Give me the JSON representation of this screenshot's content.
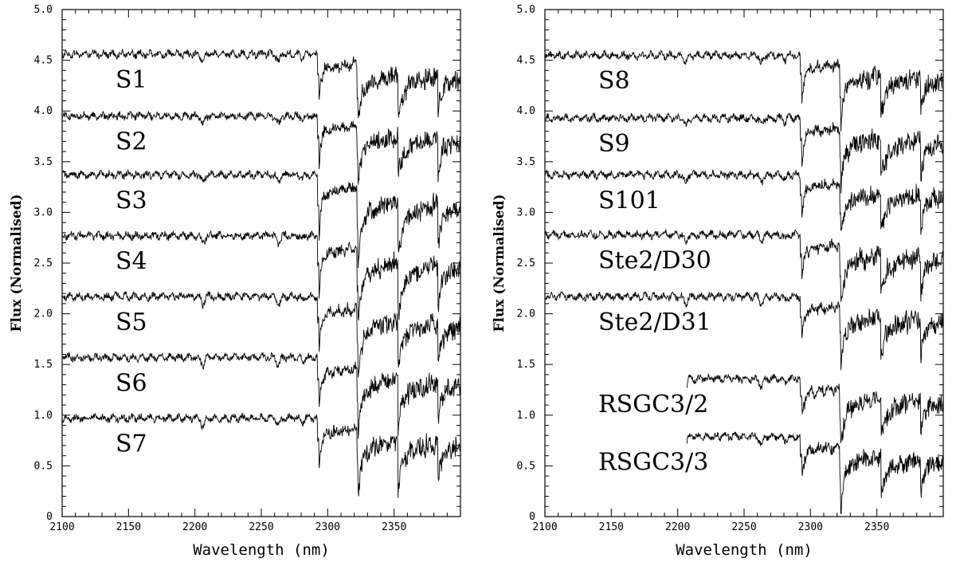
{
  "chart_data": [
    {
      "type": "line",
      "xlabel": "Wavelength (nm)",
      "ylabel": "Flux (Normalised)",
      "xlim": [
        2100,
        2400
      ],
      "ylim": [
        0,
        5
      ],
      "x_ticks": [
        "2100",
        "2150",
        "2200",
        "2250",
        "2300",
        "2350"
      ],
      "y_ticks": [
        "0",
        "0.5",
        "1.0",
        "1.5",
        "2.0",
        "2.5",
        "3.0",
        "3.5",
        "4.0",
        "4.5",
        "5.0"
      ],
      "x_tick_values": [
        2100,
        2150,
        2200,
        2250,
        2300,
        2350
      ],
      "y_tick_values": [
        0,
        0.5,
        1.0,
        1.5,
        2.0,
        2.5,
        3.0,
        3.5,
        4.0,
        4.5,
        5.0
      ],
      "series": [
        {
          "name": "S1",
          "baseline": 4.56,
          "wave_start": 2100,
          "co_depth": 1.0
        },
        {
          "name": "S2",
          "baseline": 3.95,
          "wave_start": 2100,
          "co_depth": 1.0
        },
        {
          "name": "S3",
          "baseline": 3.37,
          "wave_start": 2100,
          "co_depth": 1.3
        },
        {
          "name": "S4",
          "baseline": 2.77,
          "wave_start": 2100,
          "co_depth": 1.3
        },
        {
          "name": "S5",
          "baseline": 2.17,
          "wave_start": 2100,
          "co_depth": 1.2
        },
        {
          "name": "S6",
          "baseline": 1.57,
          "wave_start": 2100,
          "co_depth": 1.1
        },
        {
          "name": "S7",
          "baseline": 0.97,
          "wave_start": 2100,
          "co_depth": 1.1
        }
      ]
    },
    {
      "type": "line",
      "xlabel": "Wavelength (nm)",
      "ylabel": "Flux (Normalised)",
      "xlim": [
        2100,
        2400
      ],
      "ylim": [
        0,
        5
      ],
      "x_ticks": [
        "2100",
        "2150",
        "2200",
        "2250",
        "2300",
        "2350"
      ],
      "y_ticks": [
        "0",
        "0.5",
        "1.0",
        "1.5",
        "2.0",
        "2.5",
        "3.0",
        "3.5",
        "4.0",
        "4.5",
        "5.0"
      ],
      "x_tick_values": [
        2100,
        2150,
        2200,
        2250,
        2300,
        2350
      ],
      "y_tick_values": [
        0,
        0.5,
        1.0,
        1.5,
        2.0,
        2.5,
        3.0,
        3.5,
        4.0,
        4.5,
        5.0
      ],
      "series": [
        {
          "name": "S8",
          "baseline": 4.55,
          "wave_start": 2100,
          "co_depth": 1.0
        },
        {
          "name": "S9",
          "baseline": 3.93,
          "wave_start": 2100,
          "co_depth": 1.0
        },
        {
          "name": "S101",
          "baseline": 3.37,
          "wave_start": 2100,
          "co_depth": 0.9
        },
        {
          "name": "Ste2/D30",
          "baseline": 2.78,
          "wave_start": 2100,
          "co_depth": 1.0
        },
        {
          "name": "Ste2/D31",
          "baseline": 2.17,
          "wave_start": 2100,
          "co_depth": 1.0
        },
        {
          "name": "RSGC3/2",
          "baseline": 1.36,
          "wave_start": 2207,
          "co_depth": 1.0
        },
        {
          "name": "RSGC3/3",
          "baseline": 0.79,
          "wave_start": 2207,
          "co_depth": 1.0
        }
      ]
    }
  ]
}
